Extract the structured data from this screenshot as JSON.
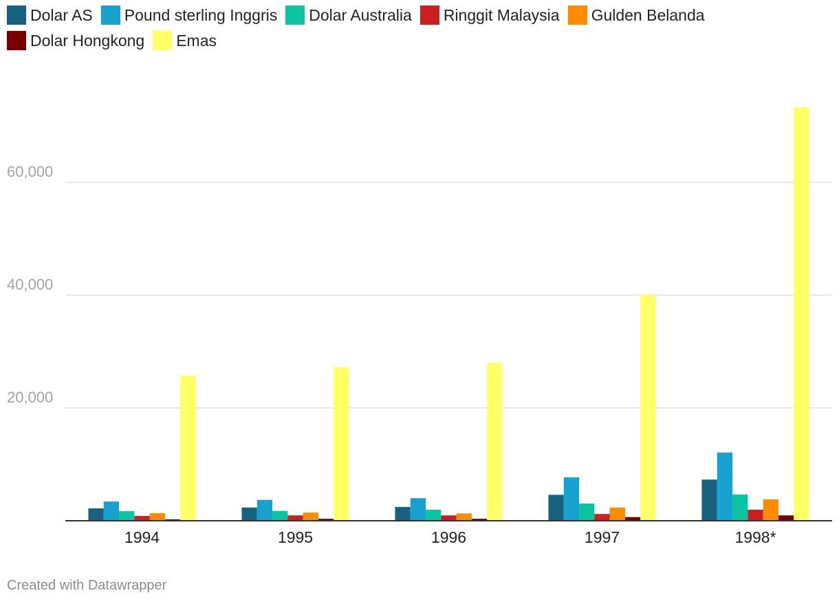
{
  "chart_data": {
    "type": "bar",
    "title": "",
    "xlabel": "",
    "ylabel": "",
    "categories": [
      "1994",
      "1995",
      "1996",
      "1997",
      "1998*"
    ],
    "series": [
      {
        "name": "Dolar AS",
        "color": "#17627f",
        "values": [
          2200,
          2350,
          2450,
          4600,
          7300
        ]
      },
      {
        "name": "Pound sterling Inggris",
        "color": "#17a1cf",
        "values": [
          3400,
          3700,
          4000,
          7700,
          12100
        ]
      },
      {
        "name": "Dolar Australia",
        "color": "#0cc4a2",
        "values": [
          1700,
          1750,
          1950,
          3050,
          4650
        ]
      },
      {
        "name": "Ringgit Malaysia",
        "color": "#cc1f1f",
        "values": [
          850,
          950,
          950,
          1200,
          1950
        ]
      },
      {
        "name": "Gulden Belanda",
        "color": "#ff8c00",
        "values": [
          1350,
          1450,
          1300,
          2350,
          3800
        ]
      },
      {
        "name": "Dolar Hongkong",
        "color": "#7a0000",
        "values": [
          250,
          350,
          350,
          650,
          950
        ]
      },
      {
        "name": "Emas",
        "color": "#ffff66",
        "values": [
          25700,
          27200,
          28000,
          40000,
          73300
        ]
      }
    ],
    "ylim": [
      0,
      80000
    ],
    "yticks": [
      20000,
      40000,
      60000
    ],
    "ytick_labels": [
      "20,000",
      "40,000",
      "60,000"
    ],
    "grid": true,
    "legend": "top-left"
  },
  "footer": {
    "credit": "Created with Datawrapper"
  }
}
